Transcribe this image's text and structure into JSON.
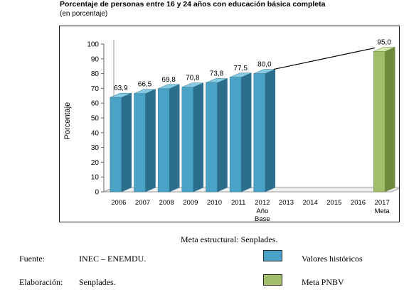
{
  "colors": {
    "historic_front": "#4aa3c6",
    "historic_top": "#86cbe3",
    "historic_side": "#2c6f8d",
    "goal_front": "#a2be6a",
    "goal_top": "#d5e8b0",
    "goal_side": "#6f8a3c"
  },
  "chart_data": {
    "type": "bar",
    "title": "Porcentaje de personas entre 16 y 24 años con educación básica completa",
    "subtitle": "(en porcentaje)",
    "ylabel": "Porcentaje",
    "xlabel": "",
    "ylim": [
      0,
      100
    ],
    "yticks": [
      "0",
      "10",
      "20",
      "30",
      "40",
      "50",
      "60",
      "70",
      "80",
      "90",
      "100"
    ],
    "categories": [
      "2006",
      "2007",
      "2008",
      "2009",
      "2010",
      "2011",
      "2012",
      "2013",
      "2014",
      "2015",
      "2016",
      "2017"
    ],
    "category_sublabels": {
      "2012": [
        "Año",
        "Base"
      ],
      "2017": [
        "Meta"
      ]
    },
    "series": [
      {
        "name": "Valores históricos",
        "values": [
          63.9,
          66.5,
          69.8,
          70.8,
          73.8,
          77.5,
          80.0,
          null,
          null,
          null,
          null,
          null
        ],
        "labels": [
          "63,9",
          "66,5",
          "69,8",
          "70,8",
          "73,8",
          "77,5",
          "80,0",
          "",
          "",
          "",
          "",
          ""
        ]
      },
      {
        "name": "Meta PNBV",
        "values": [
          null,
          null,
          null,
          null,
          null,
          null,
          null,
          null,
          null,
          null,
          null,
          95.0
        ],
        "labels": [
          "",
          "",
          "",
          "",
          "",
          "",
          "",
          "",
          "",
          "",
          "",
          "95,0"
        ]
      }
    ],
    "trend_line": {
      "from": "2012",
      "to": "2017"
    },
    "grid": false,
    "legend": "bottom-right"
  },
  "footer": {
    "caption": "Meta estructural: Senplades.",
    "source_label": "Fuente:",
    "source_value": "INEC – ENEMDU.",
    "elab_label": "Elaboración:",
    "elab_value": "Senplades.",
    "legend_historic": "Valores históricos",
    "legend_goal": "Meta PNBV"
  }
}
